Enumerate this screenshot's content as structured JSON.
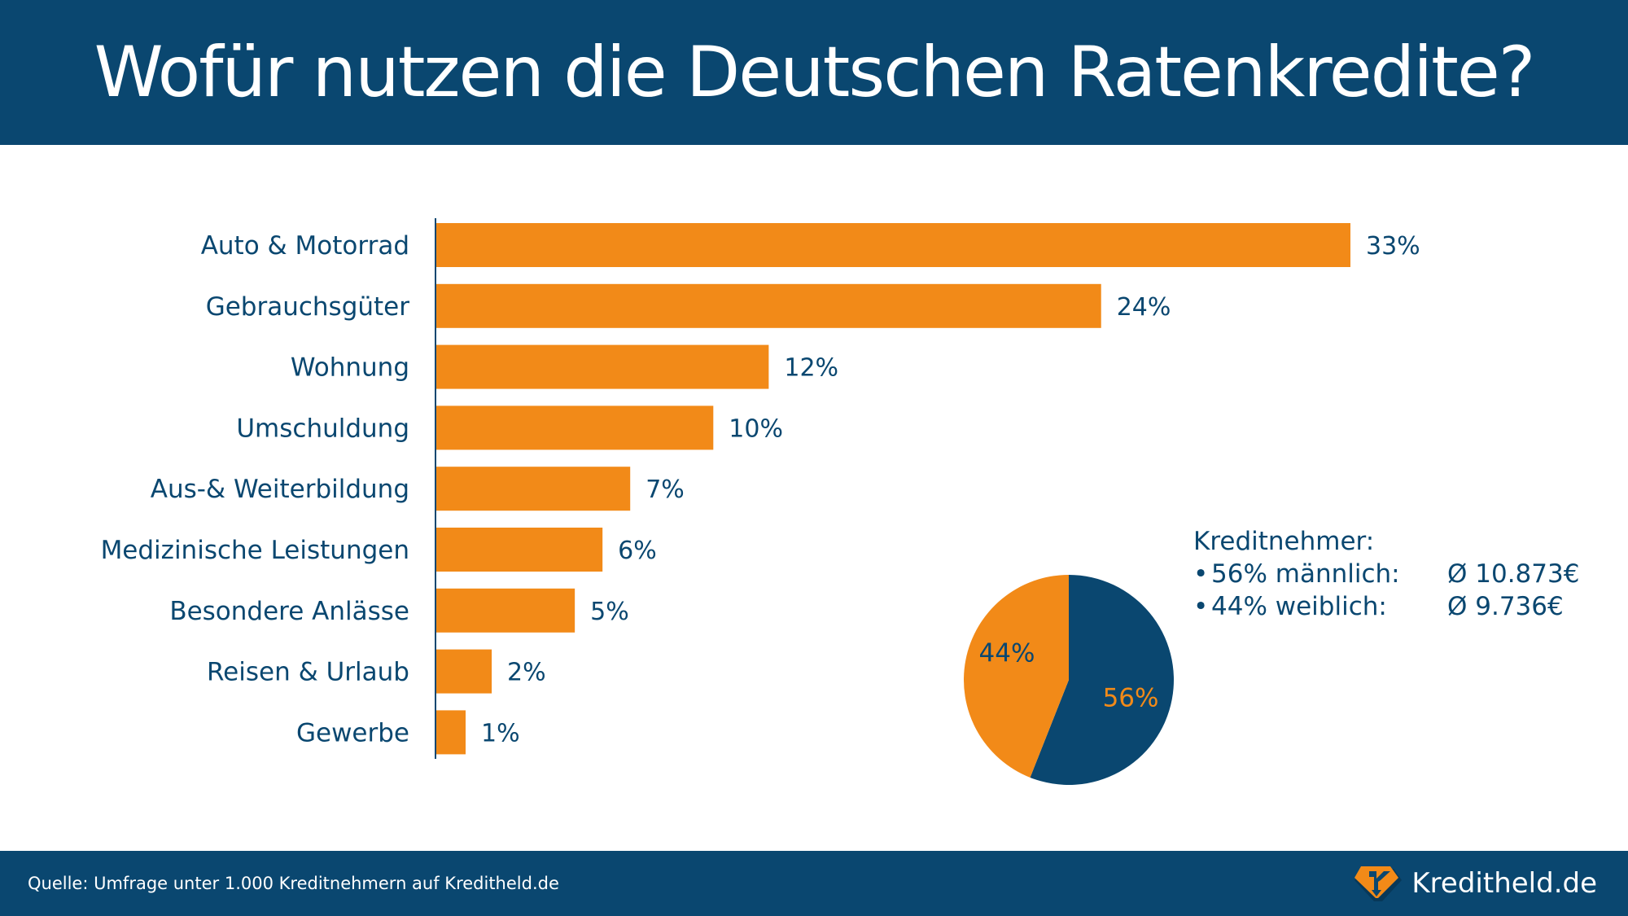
{
  "title": "Wofür nutzen die Deutschen Ratenkredite?",
  "chart_data": [
    {
      "type": "bar",
      "orientation": "horizontal",
      "title": "Wofür nutzen die Deutschen Ratenkredite?",
      "categories": [
        "Auto & Motorrad",
        "Gebrauchsgüter",
        "Wohnung",
        "Umschuldung",
        "Aus-& Weiterbildung",
        "Medizinische Leistungen",
        "Besondere Anlässe",
        "Reisen & Urlaub",
        "Gewerbe"
      ],
      "values": [
        33,
        24,
        12,
        10,
        7,
        6,
        5,
        2,
        1
      ],
      "value_labels": [
        "33%",
        "24%",
        "12%",
        "10%",
        "7%",
        "6%",
        "5%",
        "2%",
        "1%"
      ],
      "unit": "%",
      "xlim": [
        0,
        33
      ],
      "grid": false,
      "color": "#f28a18"
    },
    {
      "type": "pie",
      "title": "Kreditnehmer:",
      "categories": [
        "männlich",
        "weiblich"
      ],
      "values": [
        56,
        44
      ],
      "value_labels": [
        "56%",
        "44%"
      ],
      "colors": [
        "#0a4770",
        "#f28a18"
      ],
      "label_colors": [
        "#f28a18",
        "#0a4770"
      ]
    }
  ],
  "legend": {
    "title": "Kreditnehmer:",
    "rows": [
      {
        "bullet": "•",
        "label": "56% männlich:",
        "value": "Ø 10.873€"
      },
      {
        "bullet": "•",
        "label": "44% weiblich:",
        "value": "Ø 9.736€"
      }
    ]
  },
  "footer": {
    "source": "Quelle: Umfrage unter 1.000 Kreditnehmern auf Kreditheld.de",
    "brand": "Kreditheld.de"
  },
  "colors": {
    "navy": "#0a4770",
    "orange": "#f28a18"
  }
}
